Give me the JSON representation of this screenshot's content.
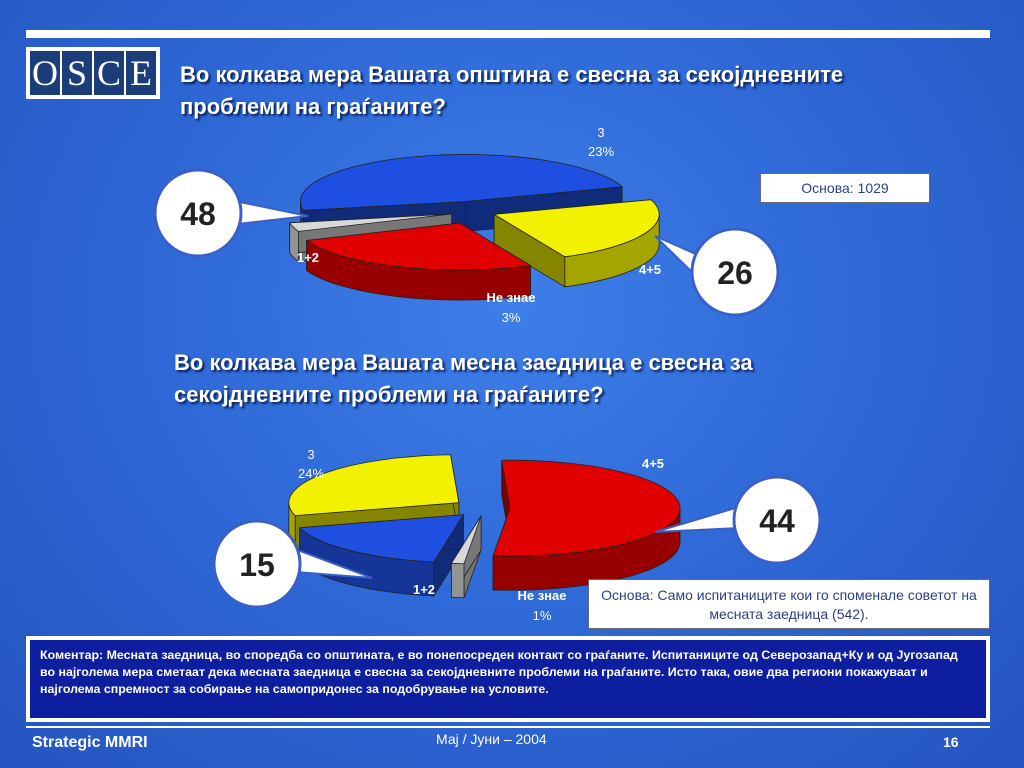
{
  "logo": {
    "letters": [
      "O",
      "S",
      "C",
      "E"
    ]
  },
  "question1": "Во колкава мера Вашата општина е свесна за секојдневните\nпроблеми на граѓаните?",
  "question2": "Во колкава мера Вашата месна заедница е свесна за\nсекојдневните проблеми на граѓаните?",
  "chart_data": [
    {
      "type": "pie",
      "title": "Во колкава мера Вашата општина е свесна за секојдневните проблеми на граѓаните?",
      "categories": [
        "1+2",
        "3",
        "4+5",
        "Не знае"
      ],
      "values": [
        48,
        23,
        26,
        3
      ],
      "labels": {
        "cat_1_2": "1+2",
        "cat_3": "3",
        "cat_3_pct": "23%",
        "cat_4_5": "4+5",
        "cat_dk": "Не знае",
        "cat_dk_pct": "3%"
      },
      "bubbles": {
        "left": "48",
        "right": "26"
      },
      "colors": [
        "#1f4fe0",
        "#f2f200",
        "#e00000",
        "#d8d8d8"
      ],
      "base": "Основа: 1029"
    },
    {
      "type": "pie",
      "title": "Во колкава мера Вашата месна заедница е свесна за секојдневните проблеми на граѓаните?",
      "categories": [
        "4+5",
        "Не знае",
        "1+2",
        "3"
      ],
      "values": [
        44,
        1,
        15,
        24
      ],
      "labels": {
        "cat_3": "3",
        "cat_3_pct": "24%",
        "cat_4_5": "4+5",
        "cat_1_2": "1+2",
        "cat_dk": "Не знае",
        "cat_dk_pct": "1%"
      },
      "bubbles": {
        "left": "15",
        "right": "44"
      },
      "colors": [
        "#e00000",
        "#d8d8d8",
        "#1f4fe0",
        "#f2f200"
      ],
      "base": "Основа: Само испитаниците кои го споменале советот на месната заедница (542)."
    }
  ],
  "comment": "Коментар: Месната заедница, во споредба со општината, е во понепосреден контакт со граѓаните. Испитаниците од Северозапад+Ку и од Југозапад во најголема мера сметаат дека месната заедница е свесна за секојдневните проблеми на граѓаните. Исто така, овие два региони покажуваат и најголема спремност за собирање на самопридонес за подобрување на условите.",
  "footer": {
    "left": "Strategic MMRI",
    "center": "Мај / Јуни – 2004",
    "page": "16"
  },
  "colors": {
    "background": "#2f6ad8",
    "blue": "#1f4fe0",
    "yellow": "#f2f200",
    "red": "#e00000",
    "grey": "#d8d8d8",
    "comment_bg": "#0d1f9e"
  }
}
